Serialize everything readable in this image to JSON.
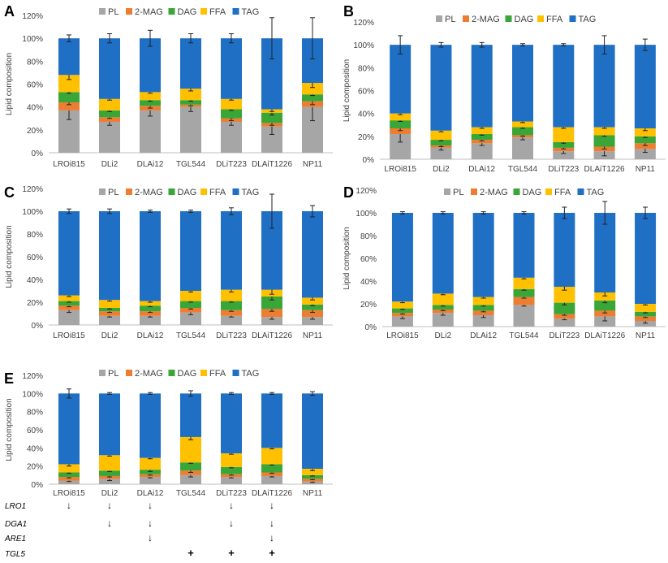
{
  "colors": {
    "PL": "#a6a6a6",
    "2-MAG": "#ed7d31",
    "DAG": "#3aa637",
    "FFA": "#ffc000",
    "TAG": "#1f6fc5",
    "axis": "#bfbfbf",
    "error": "#222222"
  },
  "categories": [
    "LROi815",
    "DLi2",
    "DLAi12",
    "TGL544",
    "DLiT223",
    "DLAiT1226",
    "NP11"
  ],
  "legend": [
    "PL",
    "2-MAG",
    "DAG",
    "FFA",
    "TAG"
  ],
  "ylabel": "Lipid composition",
  "yticks": [
    "0%",
    "20%",
    "40%",
    "60%",
    "80%",
    "100%",
    "120%"
  ],
  "chart_data": [
    {
      "type": "bar",
      "stacked": true,
      "panel": "A",
      "title": "",
      "xlabel": "",
      "ylabel": "Lipid composition",
      "ylim": [
        0,
        120
      ],
      "legend_position": "top",
      "categories": [
        "LROi815",
        "DLi2",
        "DLAi12",
        "TGL544",
        "DLiT223",
        "DLAiT1226",
        "NP11"
      ],
      "series": [
        {
          "name": "PL",
          "values": [
            37,
            27,
            37,
            40,
            27,
            23,
            40
          ],
          "errors": [
            8,
            3,
            5,
            4,
            3,
            7,
            12
          ]
        },
        {
          "name": "2-MAG",
          "values": [
            7,
            4,
            4,
            2,
            3,
            3,
            5
          ],
          "errors": [
            2,
            1,
            2,
            1,
            2,
            2,
            3
          ]
        },
        {
          "name": "DAG",
          "values": [
            9,
            6,
            5,
            4,
            8,
            9,
            6
          ],
          "errors": [
            1,
            1,
            1,
            1,
            1,
            2,
            1
          ]
        },
        {
          "name": "FFA",
          "values": [
            15,
            10,
            7,
            10,
            9,
            3,
            10
          ],
          "errors": [
            4,
            1,
            1,
            2,
            1,
            2,
            4
          ]
        },
        {
          "name": "TAG",
          "values": [
            32,
            53,
            47,
            44,
            53,
            62,
            39
          ],
          "errors": [
            3,
            4,
            7,
            4,
            4,
            18,
            18
          ]
        }
      ]
    },
    {
      "type": "bar",
      "stacked": true,
      "panel": "B",
      "title": "",
      "xlabel": "",
      "ylabel": "Lipid composition",
      "ylim": [
        0,
        120
      ],
      "legend_position": "top",
      "categories": [
        "LROi815",
        "DLi2",
        "DLAi12",
        "TGL544",
        "DLiT223",
        "DLAiT1226",
        "NP11"
      ],
      "series": [
        {
          "name": "PL",
          "values": [
            22,
            10,
            14,
            19,
            7,
            7,
            9
          ],
          "errors": [
            7,
            2,
            2,
            2,
            2,
            4,
            3
          ]
        },
        {
          "name": "2-MAG",
          "values": [
            5,
            2,
            3,
            2,
            3,
            4,
            5
          ],
          "errors": [
            2,
            1,
            1,
            1,
            1,
            2,
            2
          ]
        },
        {
          "name": "DAG",
          "values": [
            7,
            5,
            5,
            7,
            5,
            10,
            6
          ],
          "errors": [
            1,
            1,
            1,
            1,
            1,
            1,
            1
          ]
        },
        {
          "name": "FFA",
          "values": [
            6,
            8,
            6,
            5,
            13,
            7,
            7
          ],
          "errors": [
            1,
            1,
            1,
            1,
            1,
            1,
            2
          ]
        },
        {
          "name": "TAG",
          "values": [
            60,
            75,
            72,
            67,
            72,
            72,
            73
          ],
          "errors": [
            8,
            2,
            2,
            1,
            1,
            8,
            5
          ]
        }
      ]
    },
    {
      "type": "bar",
      "stacked": true,
      "panel": "C",
      "title": "",
      "xlabel": "",
      "ylabel": "Lipid composition",
      "ylim": [
        0,
        120
      ],
      "legend_position": "top",
      "categories": [
        "LROi815",
        "DLi2",
        "DLAi12",
        "TGL544",
        "DLiT223",
        "DLAiT1226",
        "NP11"
      ],
      "series": [
        {
          "name": "PL",
          "values": [
            13,
            8,
            8,
            11,
            8,
            7,
            7
          ],
          "errors": [
            2,
            1,
            1,
            2,
            1,
            2,
            2
          ]
        },
        {
          "name": "2-MAG",
          "values": [
            4,
            4,
            4,
            4,
            5,
            7,
            6
          ],
          "errors": [
            1,
            1,
            1,
            1,
            1,
            2,
            2
          ]
        },
        {
          "name": "DAG",
          "values": [
            4,
            3,
            5,
            6,
            8,
            11,
            5
          ],
          "errors": [
            1,
            1,
            1,
            1,
            1,
            3,
            1
          ]
        },
        {
          "name": "FFA",
          "values": [
            5,
            7,
            4,
            9,
            10,
            6,
            6
          ],
          "errors": [
            1,
            1,
            1,
            1,
            2,
            4,
            2
          ]
        },
        {
          "name": "TAG",
          "values": [
            74,
            78,
            79,
            70,
            69,
            69,
            76
          ],
          "errors": [
            2,
            2,
            1,
            1,
            3,
            15,
            5
          ]
        }
      ]
    },
    {
      "type": "bar",
      "stacked": true,
      "panel": "D",
      "title": "",
      "xlabel": "",
      "ylabel": "Lipid composition",
      "ylim": [
        0,
        120
      ],
      "legend_position": "top",
      "categories": [
        "LROi815",
        "DLi2",
        "DLAi12",
        "TGL544",
        "DLiT223",
        "DLAiT1226",
        "NP11"
      ],
      "series": [
        {
          "name": "PL",
          "values": [
            9,
            12,
            10,
            19,
            7,
            9,
            5
          ],
          "errors": [
            2,
            2,
            2,
            1,
            1,
            4,
            2
          ]
        },
        {
          "name": "2-MAG",
          "values": [
            3,
            3,
            4,
            7,
            4,
            5,
            4
          ],
          "errors": [
            1,
            1,
            1,
            1,
            1,
            2,
            1
          ]
        },
        {
          "name": "DAG",
          "values": [
            4,
            4,
            5,
            7,
            10,
            9,
            4
          ],
          "errors": [
            1,
            1,
            1,
            1,
            2,
            2,
            1
          ]
        },
        {
          "name": "FFA",
          "values": [
            6,
            10,
            7,
            10,
            14,
            7,
            7
          ],
          "errors": [
            1,
            1,
            1,
            1,
            3,
            3,
            1
          ]
        },
        {
          "name": "TAG",
          "values": [
            78,
            71,
            74,
            57,
            65,
            70,
            80
          ],
          "errors": [
            1,
            1,
            1,
            1,
            5,
            10,
            5
          ]
        }
      ]
    },
    {
      "type": "bar",
      "stacked": true,
      "panel": "E",
      "title": "",
      "xlabel": "",
      "ylabel": "Lipid composition",
      "ylim": [
        0,
        120
      ],
      "legend_position": "top",
      "categories": [
        "LROi815",
        "DLi2",
        "DLAi12",
        "TGL544",
        "DLiT223",
        "DLAiT1226",
        "NP11"
      ],
      "series": [
        {
          "name": "PL",
          "values": [
            4,
            6,
            8,
            10,
            8,
            9,
            3
          ],
          "errors": [
            1,
            2,
            1,
            2,
            1,
            1,
            1
          ]
        },
        {
          "name": "2-MAG",
          "values": [
            4,
            3,
            3,
            5,
            3,
            4,
            3
          ],
          "errors": [
            1,
            1,
            1,
            2,
            1,
            1,
            1
          ]
        },
        {
          "name": "DAG",
          "values": [
            5,
            6,
            5,
            9,
            8,
            9,
            4
          ],
          "errors": [
            1,
            1,
            2,
            1,
            1,
            1,
            1
          ]
        },
        {
          "name": "FFA",
          "values": [
            9,
            17,
            13,
            28,
            15,
            18,
            7
          ],
          "errors": [
            2,
            1,
            1,
            3,
            1,
            1,
            2
          ]
        },
        {
          "name": "TAG",
          "values": [
            78,
            68,
            71,
            48,
            66,
            60,
            83
          ],
          "errors": [
            5,
            1,
            1,
            3,
            1,
            1,
            2
          ]
        }
      ]
    }
  ],
  "genes": [
    {
      "name": "LRO1",
      "marks": [
        "↓",
        "↓",
        "↓",
        "",
        "↓",
        "↓",
        ""
      ]
    },
    {
      "name": "DGA1",
      "marks": [
        "",
        "↓",
        "↓",
        "",
        "↓",
        "↓",
        ""
      ]
    },
    {
      "name": "ARE1",
      "marks": [
        "",
        "",
        "↓",
        "",
        "",
        "↓",
        ""
      ]
    },
    {
      "name": "TGL5",
      "marks": [
        "",
        "",
        "",
        "+",
        "+",
        "+",
        ""
      ]
    }
  ]
}
